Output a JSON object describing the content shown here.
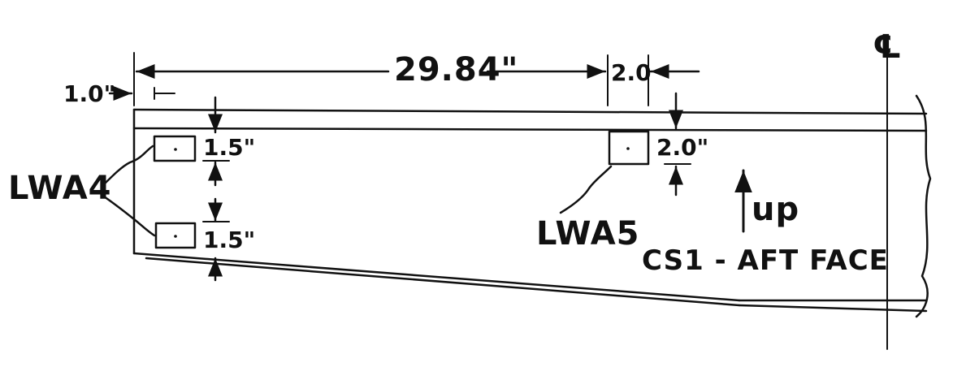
{
  "drawing": {
    "centerline_symbol": "℄",
    "dims": {
      "overall": "29.84\"",
      "left_offset": "1.0\"",
      "right_spacing": "2.0",
      "lwa5_vertical": "2.0\"",
      "lwa4_top_vertical": "1.5\"",
      "lwa4_bottom_vertical": "1.5\""
    },
    "labels": {
      "lwa4": "LWA4",
      "lwa5": "LWA5",
      "up": "up",
      "view_title": "CS1 - AFT FACE"
    }
  }
}
